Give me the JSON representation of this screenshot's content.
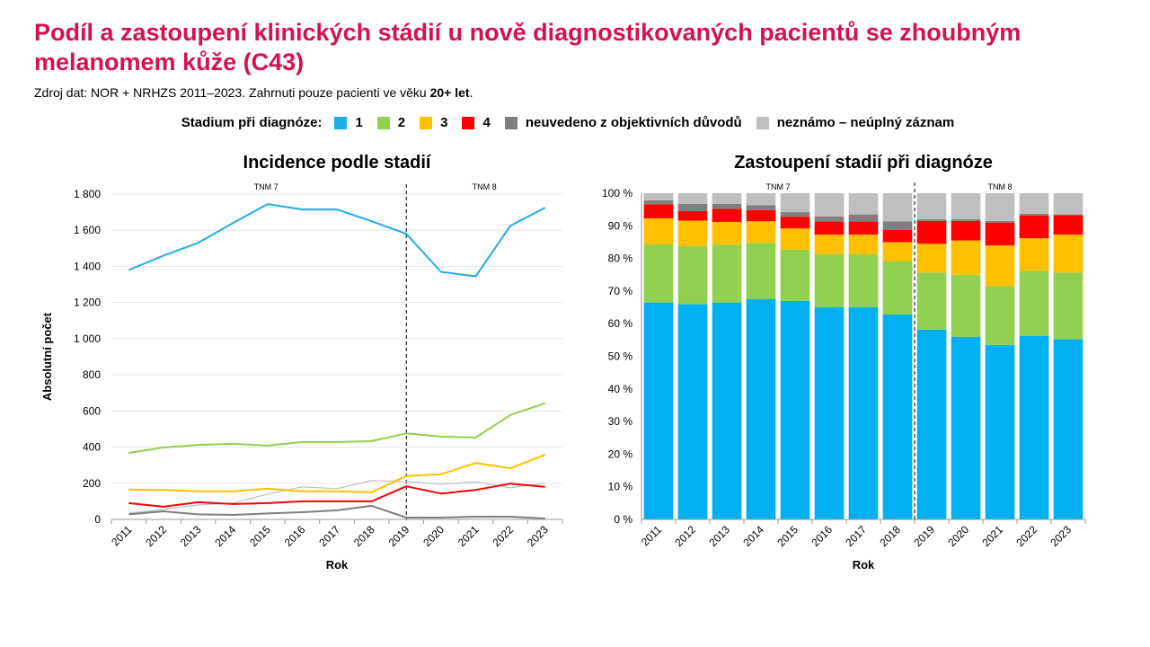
{
  "title": "Podíl a zastoupení klinických stádií u nově diagnostikovaných pacientů se zhoubným melanomem kůže (C43)",
  "source": {
    "prefix": "Zdroj dat: NOR + NRHZS 2011–2023. Zahrnuti pouze pacienti ve věku ",
    "bold": "20+ let",
    "suffix": "."
  },
  "legend": {
    "title": "Stadium při diagnóze:",
    "items": [
      {
        "label": "1",
        "color": "#1eaee6"
      },
      {
        "label": "2",
        "color": "#92d050"
      },
      {
        "label": "3",
        "color": "#ffc000"
      },
      {
        "label": "4",
        "color": "#ff0000"
      },
      {
        "label": "neuvedeno z objektivních důvodů",
        "color": "#7f7f7f"
      },
      {
        "label": "neznámo – neúplný záznam",
        "color": "#bfbfbf"
      }
    ]
  },
  "chart_data": [
    {
      "type": "line",
      "title": "Incidence podle stadií",
      "xlabel": "Rok",
      "ylabel": "Absolutní počet",
      "x": [
        "2011",
        "2012",
        "2013",
        "2014",
        "2015",
        "2016",
        "2017",
        "2018",
        "2019",
        "2020",
        "2021",
        "2022",
        "2023"
      ],
      "ylim": [
        0,
        1800
      ],
      "yticks": [
        "0",
        "200",
        "400",
        "600",
        "800",
        "1 000",
        "1 200",
        "1 400",
        "1 600",
        "1 800"
      ],
      "annotations": [
        "TNM 7",
        "TNM 8"
      ],
      "series": [
        {
          "name": "1",
          "color": "#1eaee6",
          "values": [
            1380,
            1460,
            1530,
            1640,
            1745,
            1715,
            1715,
            1650,
            1580,
            1370,
            1345,
            1625,
            1725
          ]
        },
        {
          "name": "2",
          "color": "#92d050",
          "values": [
            368,
            398,
            412,
            418,
            408,
            428,
            428,
            433,
            476,
            458,
            453,
            578,
            643
          ]
        },
        {
          "name": "3",
          "color": "#ffc000",
          "values": [
            165,
            163,
            155,
            155,
            170,
            155,
            155,
            150,
            240,
            250,
            312,
            283,
            358
          ]
        },
        {
          "name": "4",
          "color": "#ff0000",
          "values": [
            90,
            70,
            95,
            85,
            90,
            100,
            100,
            100,
            183,
            143,
            163,
            198,
            180
          ]
        },
        {
          "name": "neuvedeno z objektivních důvodů",
          "color": "#7f7f7f",
          "values": [
            28,
            45,
            28,
            25,
            33,
            40,
            50,
            75,
            10,
            10,
            15,
            15,
            5
          ]
        },
        {
          "name": "neznámo – neúplný záznam",
          "color": "#bfbfbf",
          "values": [
            35,
            55,
            80,
            90,
            140,
            180,
            170,
            215,
            210,
            195,
            208,
            175,
            200
          ]
        }
      ]
    },
    {
      "type": "bar",
      "stacked": true,
      "title": "Zastoupení stadií při diagnóze",
      "xlabel": "Rok",
      "categories": [
        "2011",
        "2012",
        "2013",
        "2014",
        "2015",
        "2016",
        "2017",
        "2018",
        "2019",
        "2020",
        "2021",
        "2022",
        "2023"
      ],
      "ylim": [
        0,
        100
      ],
      "yticks": [
        "0 %",
        "10 %",
        "20 %",
        "30 %",
        "40 %",
        "50 %",
        "60 %",
        "70 %",
        "80 %",
        "90 %",
        "100 %"
      ],
      "annotations": [
        "TNM 7",
        "TNM 8"
      ],
      "series": [
        {
          "name": "1",
          "color": "#00b0f0",
          "values": [
            66.5,
            66.0,
            66.5,
            67.5,
            67.0,
            65.0,
            65.0,
            62.8,
            58.2,
            56.0,
            53.5,
            56.2,
            55.2
          ]
        },
        {
          "name": "2",
          "color": "#92d050",
          "values": [
            17.8,
            17.8,
            17.7,
            17.3,
            15.7,
            16.3,
            16.3,
            16.4,
            17.5,
            19.0,
            18.0,
            20.0,
            20.5
          ]
        },
        {
          "name": "3",
          "color": "#ffc000",
          "values": [
            8.0,
            7.8,
            7.0,
            6.6,
            6.5,
            6.0,
            6.0,
            5.8,
            8.8,
            10.5,
            12.5,
            10.0,
            11.6
          ]
        },
        {
          "name": "4",
          "color": "#ff0000",
          "values": [
            4.3,
            2.9,
            4.0,
            3.4,
            3.6,
            4.0,
            4.0,
            3.7,
            7.0,
            6.0,
            7.0,
            7.0,
            6.0
          ]
        },
        {
          "name": "neuvedeno z objektivních důvodů",
          "color": "#7f7f7f",
          "values": [
            1.2,
            2.2,
            1.5,
            1.5,
            1.4,
            1.6,
            2.2,
            2.7,
            0.5,
            0.5,
            0.5,
            0.5,
            0.2
          ]
        },
        {
          "name": "neznámo – neúplný záznam",
          "color": "#bfbfbf",
          "values": [
            2.2,
            3.3,
            3.3,
            3.7,
            5.8,
            7.1,
            6.5,
            8.6,
            8.0,
            8.0,
            8.5,
            6.3,
            6.5
          ]
        }
      ]
    }
  ]
}
